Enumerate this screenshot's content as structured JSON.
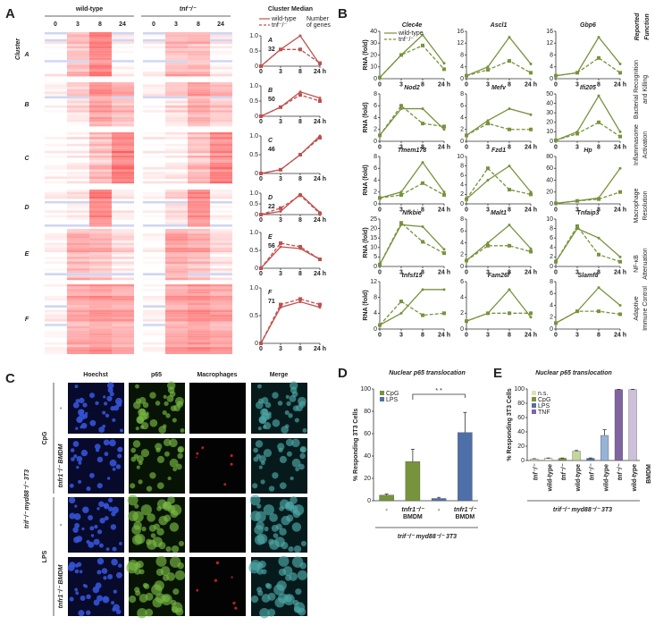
{
  "figure": {
    "panel_a": {
      "type": "heatmap-line",
      "label": "A",
      "cluster_title": "Cluster",
      "conditions": [
        "wild-type",
        "tnf⁻/⁻"
      ],
      "timepoints": [
        "0",
        "3",
        "8",
        "24"
      ],
      "median_title": "Cluster Median",
      "genes_title": [
        "Number",
        "of genes"
      ],
      "series": [
        {
          "name": "wild-type",
          "color": "#c0504d"
        },
        {
          "name": "tnf⁻/⁻",
          "color": "#c0504d"
        }
      ],
      "xcategories": [
        "0",
        "3",
        "8",
        "24 h"
      ],
      "ylim": [
        0,
        1
      ],
      "yticks": [
        0,
        0.5,
        {
          "value": 1,
          "label": "1.0"
        }
      ],
      "clusters": [
        {
          "letter": "A",
          "genes": 32,
          "values": [
            [
              0,
              0.55,
              1,
              0.05
            ],
            [
              0,
              0.55,
              0.55,
              0.1
            ]
          ]
        },
        {
          "letter": "B",
          "genes": 50,
          "values": [
            [
              0,
              0.3,
              0.8,
              0.6
            ],
            [
              0,
              0.3,
              0.7,
              0.5
            ]
          ]
        },
        {
          "letter": "C",
          "genes": 46,
          "values": [
            [
              0,
              0.1,
              0.5,
              1
            ],
            [
              0,
              0.1,
              0.5,
              0.95
            ]
          ]
        },
        {
          "letter": "D",
          "genes": 22,
          "values": [
            [
              0,
              0.15,
              0.95,
              0.1
            ],
            [
              0,
              0.3,
              0.9,
              0.05
            ]
          ]
        },
        {
          "letter": "E",
          "genes": 56,
          "values": [
            [
              0,
              0.6,
              0.55,
              0.25
            ],
            [
              0,
              0.7,
              0.6,
              0.25
            ]
          ]
        },
        {
          "letter": "F",
          "genes": 71,
          "values": [
            [
              0,
              0.65,
              0.75,
              0.65
            ],
            [
              0,
              0.7,
              0.8,
              0.7
            ]
          ]
        }
      ]
    },
    "panel_b": {
      "type": "line",
      "label": "B",
      "function_title": [
        "Reported",
        "Function"
      ],
      "ylabel": "RNA (fold)",
      "xcategories": [
        "0",
        "3",
        "8",
        "24 h"
      ],
      "series": [
        {
          "name": "wild-type",
          "color": "#77933c"
        },
        {
          "name": "tnf⁻/⁻",
          "color": "#77933c"
        }
      ],
      "rows": [
        {
          "function": [
            "Bacterial Recognition",
            "and Killing"
          ],
          "genes": [
            {
              "name": "Clec4e",
              "ylim": [
                0,
                40
              ],
              "yticks": [
                0,
                10,
                20,
                30,
                40
              ],
              "values": [
                [
                  1,
                  20,
                  37,
                  13
                ],
                [
                  1,
                  20,
                  28,
                  8
                ]
              ]
            },
            {
              "name": "Ascl1",
              "ylim": [
                0,
                16
              ],
              "yticks": [
                0,
                4,
                8,
                12,
                16
              ],
              "values": [
                [
                  1,
                  4,
                  14,
                  5
                ],
                [
                  1,
                  3,
                  6,
                  2
                ]
              ]
            },
            {
              "name": "Gbp6",
              "ylim": [
                0,
                16
              ],
              "yticks": [
                0,
                4,
                8,
                12,
                16
              ],
              "values": [
                [
                  1,
                  2,
                  14,
                  5
                ],
                [
                  1,
                  2,
                  7,
                  2
                ]
              ]
            }
          ]
        },
        {
          "function": [
            "Inflammasome",
            "Activation"
          ],
          "genes": [
            {
              "name": "Nod2",
              "ylim": [
                0,
                8
              ],
              "yticks": [
                0,
                2,
                4,
                6,
                8
              ],
              "values": [
                [
                  1,
                  5.5,
                  5.5,
                  2
                ],
                [
                  1,
                  6,
                  3,
                  2.5
                ]
              ]
            },
            {
              "name": "Mefv",
              "ylim": [
                0,
                8
              ],
              "yticks": [
                0,
                2,
                4,
                6,
                8
              ],
              "values": [
                [
                  1,
                  3.5,
                  5.5,
                  4.5
                ],
                [
                  1,
                  3,
                  2,
                  2
                ]
              ]
            },
            {
              "name": "Ifi205",
              "ylim": [
                0,
                50
              ],
              "yticks": [
                0,
                10,
                20,
                30,
                40,
                50
              ],
              "values": [
                [
                  1,
                  10,
                  48,
                  10
                ],
                [
                  1,
                  8,
                  20,
                  5
                ]
              ]
            }
          ]
        },
        {
          "function": [
            "Macrophage",
            "Resolution"
          ],
          "genes": [
            {
              "name": "Tmem178",
              "ylim": [
                0,
                8
              ],
              "yticks": [
                0,
                2,
                4,
                6,
                8
              ],
              "values": [
                [
                  1,
                  2,
                  7,
                  2
                ],
                [
                  1,
                  1.5,
                  3.5,
                  1.5
                ]
              ]
            },
            {
              "name": "Fzd1",
              "ylim": [
                0,
                10
              ],
              "yticks": [
                0,
                2,
                4,
                6,
                8,
                10
              ],
              "values": [
                [
                  1,
                  5,
                  8,
                  2.5
                ],
                [
                  1,
                  7.5,
                  3,
                  2
                ]
              ]
            },
            {
              "name": "Hp",
              "ylim": [
                0,
                80
              ],
              "yticks": [
                0,
                20,
                40,
                60,
                80
              ],
              "values": [
                [
                  1,
                  5,
                  10,
                  60
                ],
                [
                  1,
                  5,
                  8,
                  20
                ]
              ]
            }
          ]
        },
        {
          "function": [
            "NF-κB",
            "Attenuation"
          ],
          "genes": [
            {
              "name": "Nfkbie",
              "ylim": [
                0,
                25
              ],
              "yticks": [
                0,
                5,
                10,
                15,
                20,
                25
              ],
              "values": [
                [
                  1,
                  22,
                  21,
                  9
                ],
                [
                  1,
                  23,
                  13,
                  7
                ]
              ]
            },
            {
              "name": "Malt1",
              "ylim": [
                0,
                8
              ],
              "yticks": [
                0,
                2,
                4,
                6,
                8
              ],
              "values": [
                [
                  1,
                  4,
                  7,
                  3
                ],
                [
                  1,
                  3.5,
                  3.5,
                  2.5
                ]
              ]
            },
            {
              "name": "Tnfaip3",
              "ylim": [
                0,
                10
              ],
              "yticks": [
                0,
                2,
                4,
                6,
                8,
                10
              ],
              "values": [
                [
                  1,
                  8,
                  6,
                  2
                ],
                [
                  1,
                  8.5,
                  2.5,
                  1
                ]
              ]
            }
          ]
        },
        {
          "function": [
            "Adaptive",
            "Immune Control"
          ],
          "genes": [
            {
              "name": "tnfsf15",
              "ylim": [
                0,
                12
              ],
              "yticks": [
                0,
                4,
                8,
                12
              ],
              "values": [
                [
                  1,
                  4,
                  10,
                  10
                ],
                [
                  1,
                  7,
                  3.5,
                  4
                ]
              ]
            },
            {
              "name": "Fam26f",
              "ylim": [
                0,
                6
              ],
              "yticks": [
                0,
                2,
                4,
                6
              ],
              "values": [
                [
                  1,
                  2,
                  5,
                  1.5
                ],
                [
                  1,
                  2,
                  2,
                  2
                ]
              ]
            },
            {
              "name": "Slamf8",
              "ylim": [
                0,
                8
              ],
              "yticks": [
                0,
                2,
                4,
                6,
                8
              ],
              "values": [
                [
                  1,
                  3,
                  7,
                  4
                ],
                [
                  1,
                  3,
                  3,
                  2.5
                ]
              ]
            }
          ]
        }
      ]
    },
    "panel_c": {
      "type": "image-grid",
      "label": "C",
      "columns": [
        "Hoechst",
        "p65",
        "Macrophages",
        "Merge"
      ],
      "groups": [
        {
          "name": "CpG",
          "rows": [
            "-",
            "tnfr1⁻/⁻ BMDM"
          ]
        },
        {
          "name": "LPS",
          "rows": [
            "-",
            "tnfr1⁻/⁻ BMDM"
          ]
        }
      ],
      "side_label": "trif⁻/⁻ myd88⁻/⁻ 3T3"
    },
    "panel_d": {
      "type": "bar",
      "label": "D",
      "title": "Nuclear p65 translocation",
      "ylabel": "% Responding 3T3 Cells",
      "ylim": [
        0,
        100
      ],
      "yticks": [
        0,
        20,
        40,
        60,
        80,
        100
      ],
      "categories": [
        [
          "-"
        ],
        [
          "tnfr1⁻/⁻",
          "BMDM"
        ]
      ],
      "series": [
        {
          "name": "CpG",
          "color": "#77933c",
          "values": [
            5,
            35
          ],
          "errors": [
            1,
            11
          ]
        },
        {
          "name": "LPS",
          "color": "#4f6fa8",
          "values": [
            2,
            61
          ],
          "errors": [
            1,
            18
          ]
        }
      ],
      "significance": "* *",
      "footer": "trif⁻/⁻ myd88⁻/⁻ 3T3"
    },
    "panel_e": {
      "type": "bar",
      "label": "E",
      "title": "Nuclear p65 translocation",
      "ylabel": "% Responding 3T3 Cells",
      "ylim": [
        0,
        100
      ],
      "yticks": [
        0,
        20,
        40,
        60,
        80,
        100
      ],
      "categories": [
        "tnf⁻/⁻",
        "wild-type"
      ],
      "series": [
        {
          "name": "n.s.",
          "colors": [
            "#d8e4bc",
            "#ebf1de"
          ],
          "values": [
            2,
            3
          ],
          "errors": [
            0.5,
            0.5
          ]
        },
        {
          "name": "CpG",
          "colors": [
            "#77933c",
            "#c3d69b"
          ],
          "values": [
            3,
            13
          ],
          "errors": [
            0.5,
            1
          ]
        },
        {
          "name": "LPS",
          "colors": [
            "#4f6fa8",
            "#95b3d7"
          ],
          "values": [
            3,
            35
          ],
          "errors": [
            0.5,
            8
          ]
        },
        {
          "name": "TNF",
          "colors": [
            "#8064a2",
            "#ccc0da"
          ],
          "values": [
            99,
            99
          ],
          "errors": [
            0.5,
            0.5
          ]
        }
      ],
      "footer": "trif⁻/⁻ myd88⁻/⁻ 3T3",
      "side_label": "BMDM"
    }
  }
}
